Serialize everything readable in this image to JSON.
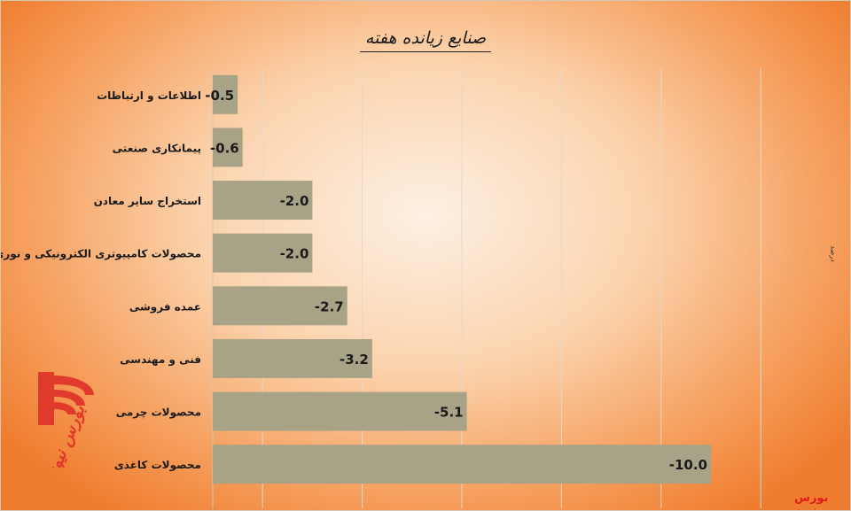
{
  "chart_data": {
    "type": "bar",
    "orientation": "horizontal",
    "title": "صنایع زیانده هفته",
    "unit": "درصد",
    "categories": [
      "اطلاعات و ارتباطات",
      "پیمانکاری صنعتی",
      "استخراج سایر معادن",
      "محصولات کامپیوتری الکترونیکی و نوری",
      "عمده فروشی",
      "فنی و مهندسی",
      "محصولات چرمی",
      "محصولات کاغذی"
    ],
    "values": [
      -0.5,
      -0.6,
      -2.0,
      -2.0,
      -2.7,
      -3.2,
      -5.1,
      -10.0
    ],
    "value_labels": [
      "-0.5",
      "-0.6",
      "-2.0",
      "-2.0",
      "-2.7",
      "-3.2",
      "-5.1",
      "-10.0"
    ],
    "xlim": [
      0,
      -12
    ],
    "grid": true,
    "bar_color": "#a8a386",
    "legend": "none"
  },
  "watermark": {
    "brand": "بورس نیوز",
    "logo_text": "بورس نیوز",
    "logo_color": "#e03a2c"
  }
}
